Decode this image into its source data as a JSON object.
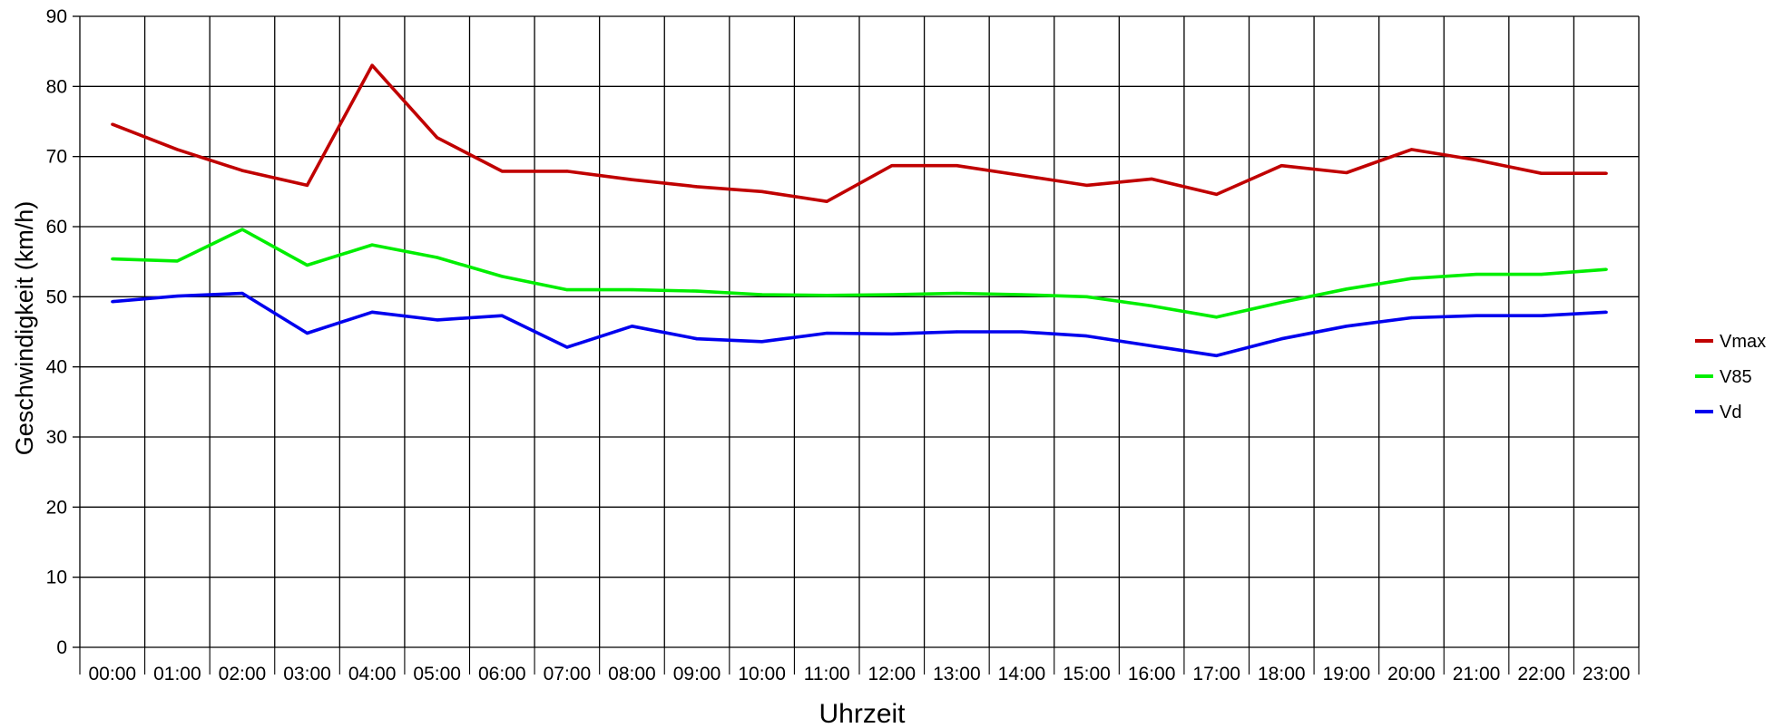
{
  "chart_data": {
    "type": "line",
    "title": "",
    "xlabel": "Uhrzeit",
    "ylabel": "Geschwindigkeit (km/h)",
    "ylim": [
      0,
      90
    ],
    "yticks": [
      0,
      10,
      20,
      30,
      40,
      50,
      60,
      70,
      80,
      90
    ],
    "grid": true,
    "legend_position": "right",
    "categories": [
      "00:00",
      "01:00",
      "02:00",
      "03:00",
      "04:00",
      "05:00",
      "06:00",
      "07:00",
      "08:00",
      "09:00",
      "10:00",
      "11:00",
      "12:00",
      "13:00",
      "14:00",
      "15:00",
      "16:00",
      "17:00",
      "18:00",
      "19:00",
      "20:00",
      "21:00",
      "22:00",
      "23:00"
    ],
    "series": [
      {
        "name": "Vmax",
        "color": "#c00000",
        "values": [
          74.6,
          71.0,
          68.0,
          65.9,
          83.0,
          72.7,
          67.9,
          67.9,
          66.7,
          65.7,
          65.0,
          63.6,
          68.7,
          68.7,
          67.3,
          65.9,
          66.8,
          64.6,
          68.7,
          67.7,
          71.0,
          69.5,
          67.6,
          67.6
        ]
      },
      {
        "name": "V85",
        "color": "#00ee00",
        "values": [
          55.4,
          55.1,
          59.6,
          54.5,
          57.4,
          55.6,
          52.9,
          51.0,
          51.0,
          50.8,
          50.3,
          50.2,
          50.3,
          50.5,
          50.3,
          50.0,
          48.7,
          47.1,
          49.2,
          51.1,
          52.6,
          53.2,
          53.2,
          53.9
        ]
      },
      {
        "name": "Vd",
        "color": "#0000ee",
        "values": [
          49.3,
          50.1,
          50.5,
          44.8,
          47.8,
          46.7,
          47.3,
          42.8,
          45.8,
          44.0,
          43.6,
          44.8,
          44.7,
          45.0,
          45.0,
          44.4,
          43.0,
          41.6,
          44.0,
          45.8,
          47.0,
          47.3,
          47.3,
          47.8
        ]
      }
    ]
  }
}
